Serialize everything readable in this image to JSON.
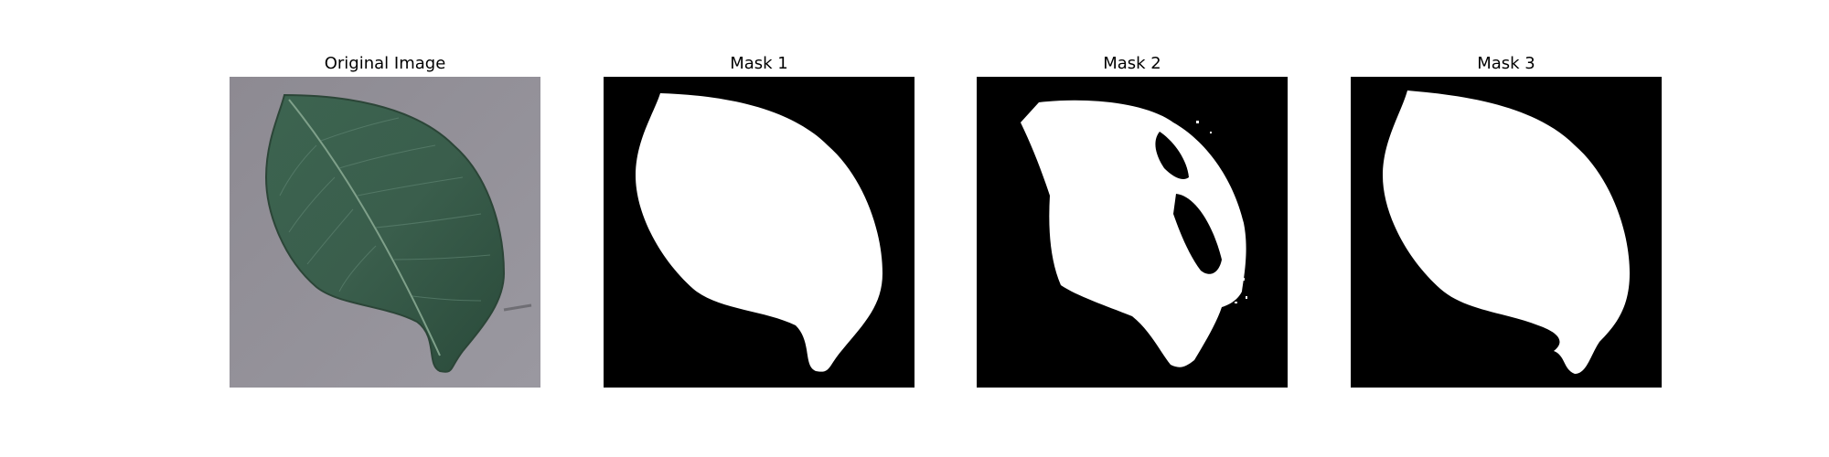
{
  "panels": [
    {
      "title": "Original Image"
    },
    {
      "title": "Mask 1"
    },
    {
      "title": "Mask 2"
    },
    {
      "title": "Mask 3"
    }
  ],
  "colors": {
    "background": "#8f8e95",
    "leaf_dark": "#2f4f3d",
    "leaf_mid": "#3f6a55",
    "mask_bg": "#000000",
    "mask_fg": "#ffffff"
  }
}
